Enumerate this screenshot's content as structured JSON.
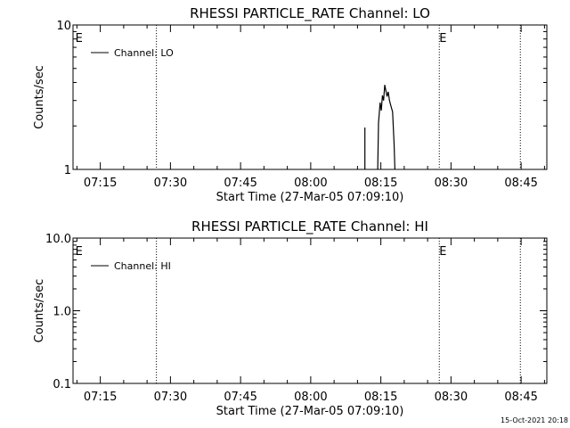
{
  "footer_timestamp": "15-Oct-2021 20:18",
  "chart_data": [
    {
      "type": "line",
      "title": "RHESSI PARTICLE_RATE Channel: LO",
      "xlabel": "Start Time (27-Mar-05 07:09:10)",
      "ylabel": "Counts/sec",
      "y_scale": "log",
      "ylim": [
        1,
        10
      ],
      "y_ticks": [
        {
          "value": 1,
          "label": "1"
        },
        {
          "value": 10,
          "label": "10"
        }
      ],
      "xlim": [
        "07:09:10",
        "08:50:30"
      ],
      "x_ticks": [
        "07:15",
        "07:30",
        "07:45",
        "08:00",
        "08:15",
        "08:30",
        "08:45"
      ],
      "legend": {
        "position": "top-left",
        "label": "Channel: LO"
      },
      "markers": [
        {
          "time": "07:09:40",
          "label": "E"
        },
        {
          "time": "08:27:30",
          "label": "E"
        }
      ],
      "dotted_lines": [
        "07:27:00",
        "08:27:30",
        "08:44:50"
      ],
      "series": [
        {
          "name": "Channel: LO",
          "segments": [
            [
              {
                "x": "08:11:35",
                "y": 1.95
              },
              {
                "x": "08:11:35",
                "y": 1
              }
            ],
            [
              {
                "x": "08:14:20",
                "y": 1
              },
              {
                "x": "08:14:30",
                "y": 2.1
              },
              {
                "x": "08:14:50",
                "y": 2.9
              },
              {
                "x": "08:15:05",
                "y": 2.55
              },
              {
                "x": "08:15:20",
                "y": 3.25
              },
              {
                "x": "08:15:35",
                "y": 3.0
              },
              {
                "x": "08:15:50",
                "y": 3.85
              },
              {
                "x": "08:16:05",
                "y": 3.5
              },
              {
                "x": "08:16:20",
                "y": 3.2
              },
              {
                "x": "08:16:35",
                "y": 3.45
              },
              {
                "x": "08:16:50",
                "y": 3.0
              },
              {
                "x": "08:17:05",
                "y": 2.8
              },
              {
                "x": "08:17:30",
                "y": 2.5
              },
              {
                "x": "08:17:50",
                "y": 1.5
              },
              {
                "x": "08:18:00",
                "y": 1
              }
            ]
          ]
        }
      ]
    },
    {
      "type": "line",
      "title": "RHESSI PARTICLE_RATE Channel: HI",
      "xlabel": "Start Time (27-Mar-05 07:09:10)",
      "ylabel": "Counts/sec",
      "y_scale": "log",
      "ylim": [
        0.1,
        10
      ],
      "y_ticks": [
        {
          "value": 0.1,
          "label": "0.1"
        },
        {
          "value": 1,
          "label": "1.0"
        },
        {
          "value": 10,
          "label": "10.0"
        }
      ],
      "xlim": [
        "07:09:10",
        "08:50:30"
      ],
      "x_ticks": [
        "07:15",
        "07:30",
        "07:45",
        "08:00",
        "08:15",
        "08:30",
        "08:45"
      ],
      "legend": {
        "position": "top-left",
        "label": "Channel: HI"
      },
      "markers": [
        {
          "time": "07:09:40",
          "label": "E"
        },
        {
          "time": "08:27:30",
          "label": "E"
        }
      ],
      "dotted_lines": [
        "07:27:00",
        "08:27:30",
        "08:44:50"
      ],
      "series": [
        {
          "name": "Channel: HI",
          "segments": []
        }
      ]
    }
  ]
}
